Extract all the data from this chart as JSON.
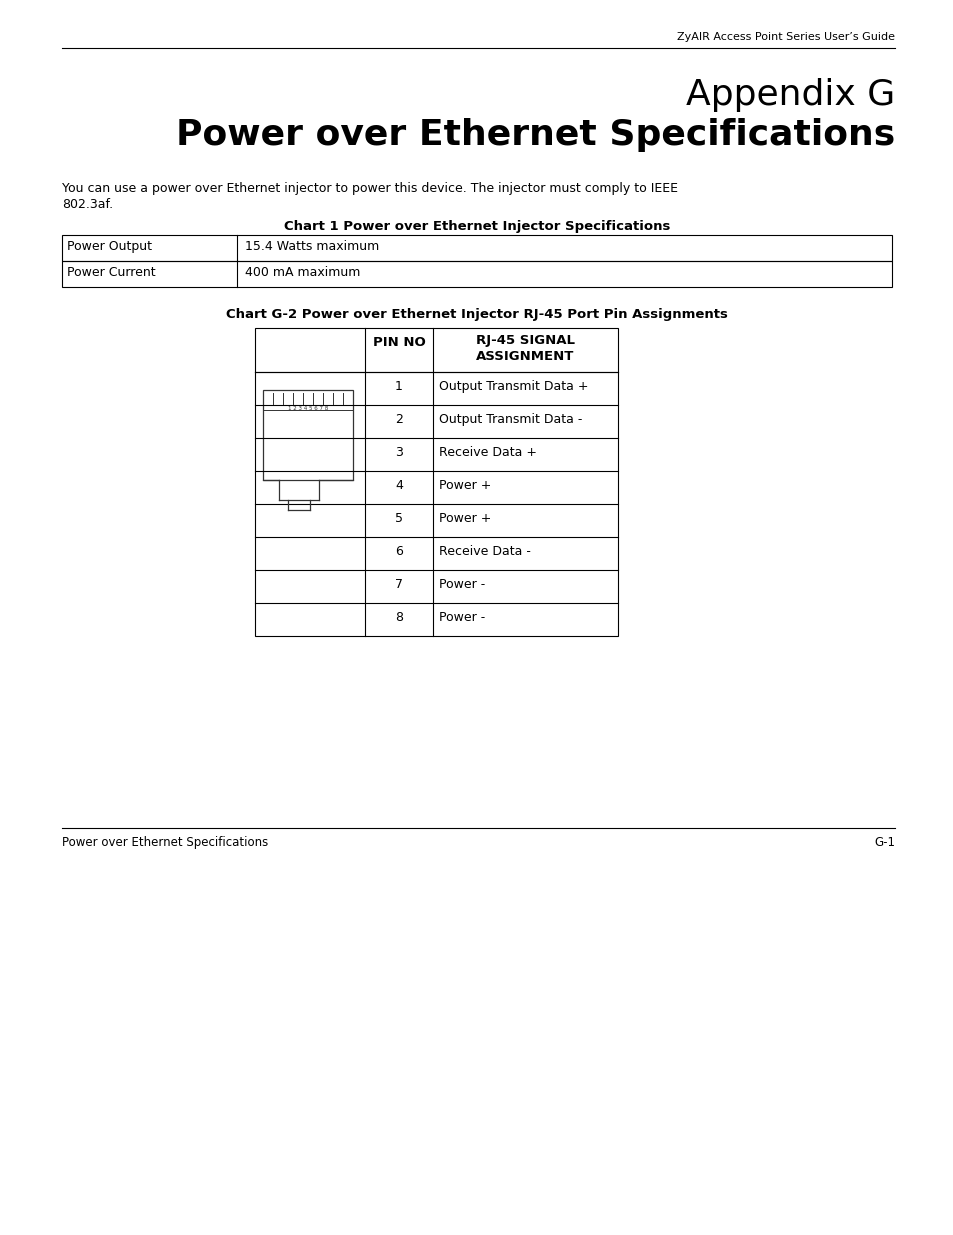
{
  "header_right": "ZyAIR Access Point Series User’s Guide",
  "title_line1": "Appendix G",
  "title_line2": "Power over Ethernet Specifications",
  "body_text_line1": "You can use a power over Ethernet injector to power this device. The injector must comply to IEEE",
  "body_text_line2": "802.3af.",
  "chart1_title": "Chart 1 Power over Ethernet Injector Specifications",
  "chart1_rows": [
    [
      "Power Output",
      "15.4 Watts maximum"
    ],
    [
      "Power Current",
      "400 mA maximum"
    ]
  ],
  "chart2_title": "Chart G-2 Power over Ethernet Injector RJ-45 Port Pin Assignments",
  "chart2_header_col1": "PIN NO",
  "chart2_header_col2": "RJ-45 SIGNAL\nASSIGNMENT",
  "chart2_rows": [
    [
      "1",
      "Output Transmit Data +"
    ],
    [
      "2",
      "Output Transmit Data -"
    ],
    [
      "3",
      "Receive Data +"
    ],
    [
      "4",
      "Power +"
    ],
    [
      "5",
      "Power +"
    ],
    [
      "6",
      "Receive Data -"
    ],
    [
      "7",
      "Power -"
    ],
    [
      "8",
      "Power -"
    ]
  ],
  "footer_left": "Power over Ethernet Specifications",
  "footer_right": "G-1",
  "bg_color": "#ffffff",
  "text_color": "#000000"
}
